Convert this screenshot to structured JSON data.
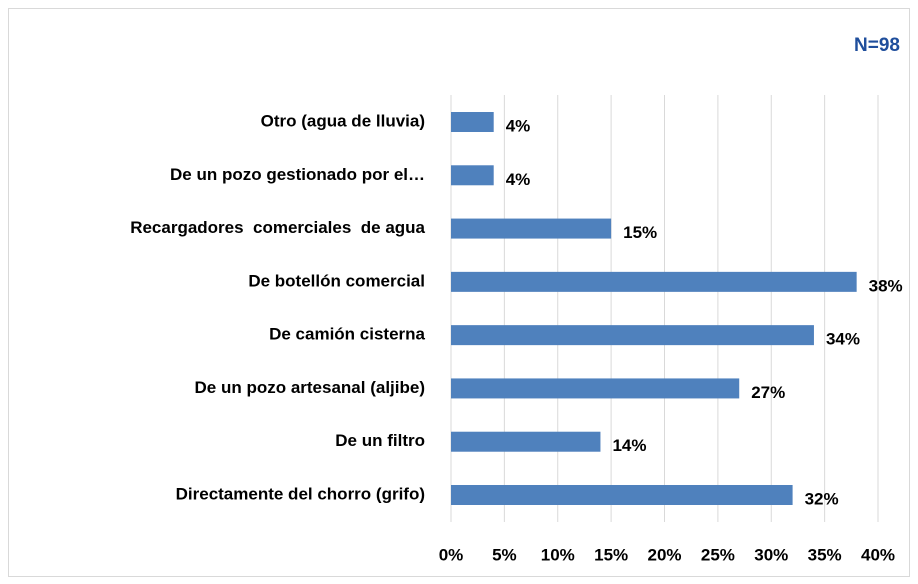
{
  "chart_data": {
    "type": "bar",
    "orientation": "horizontal",
    "annotation": "N=98",
    "categories": [
      "Otro (agua de lluvia)",
      "De un pozo gestionado por el…",
      "Recargadores  comerciales  de agua",
      "De botellón comercial",
      "De camión cisterna",
      "De un pozo artesanal (aljibe)",
      "De un filtro",
      "Directamente del chorro (grifo)"
    ],
    "values": [
      4,
      4,
      15,
      38,
      34,
      27,
      14,
      32
    ],
    "value_labels": [
      "4%",
      "4%",
      "15%",
      "38%",
      "34%",
      "27%",
      "14%",
      "32%"
    ],
    "color": "#4f81bd",
    "xlim": [
      0,
      40
    ],
    "xticks": [
      {
        "value": 0,
        "label": "0%"
      },
      {
        "value": 5,
        "label": "5%"
      },
      {
        "value": 10,
        "label": "10%"
      },
      {
        "value": 15,
        "label": "15%"
      },
      {
        "value": 20,
        "label": "20%"
      },
      {
        "value": 25,
        "label": "25%"
      },
      {
        "value": 30,
        "label": "30%"
      },
      {
        "value": 35,
        "label": "35%"
      },
      {
        "value": 40,
        "label": "40%"
      }
    ],
    "grid": true
  }
}
